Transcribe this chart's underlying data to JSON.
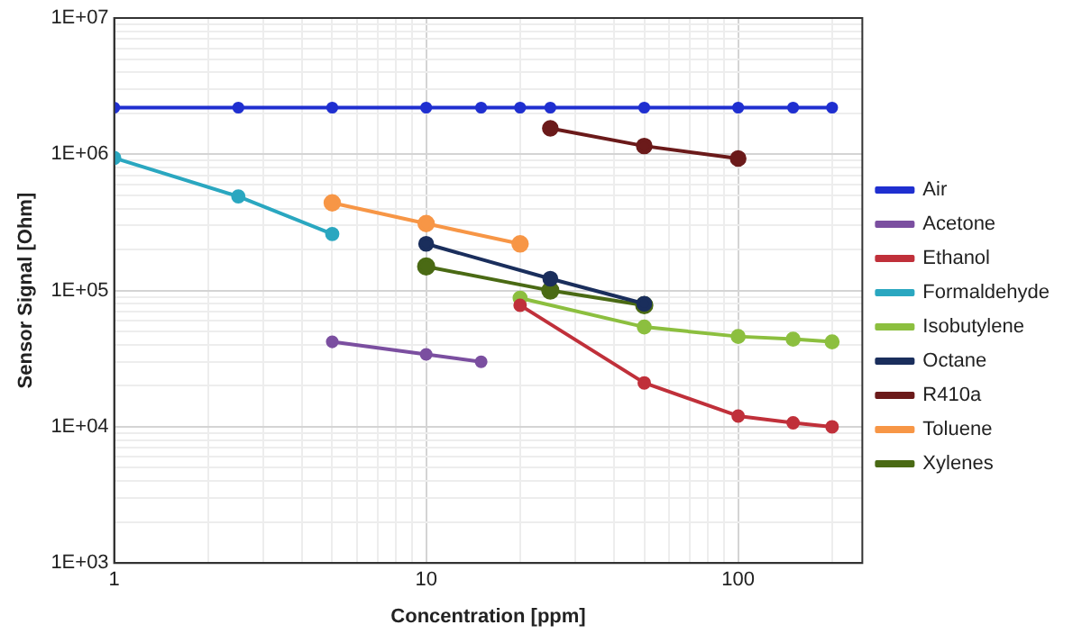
{
  "chart_data": {
    "type": "line",
    "xlabel": "Concentration [ppm]",
    "ylabel": "Sensor Signal [Ohm]",
    "log": "xy",
    "grid": true,
    "legend": "right",
    "marker": "circle",
    "line_style": "solid",
    "xlim": [
      1,
      250
    ],
    "xticks": [
      1,
      10,
      100
    ],
    "ylim": [
      1000,
      10000000
    ],
    "yticks": [
      {
        "value": 1000,
        "label": "1E+03"
      },
      {
        "value": 10000,
        "label": "1E+04"
      },
      {
        "value": 100000,
        "label": "1E+05"
      },
      {
        "value": 1000000,
        "label": "1E+06"
      },
      {
        "value": 10000000,
        "label": "1E+07"
      }
    ],
    "series": [
      {
        "name": "Air",
        "color": "#1f2fd0",
        "x": [
          1,
          2.5,
          5,
          10,
          15,
          20,
          25,
          50,
          100,
          150,
          200
        ],
        "values": [
          2200000,
          2200000,
          2200000,
          2200000,
          2200000,
          2200000,
          2200000,
          2200000,
          2200000,
          2200000,
          2200000
        ]
      },
      {
        "name": "Acetone",
        "color": "#7b4fa0",
        "x": [
          5,
          10,
          15
        ],
        "values": [
          42000,
          34000,
          30000
        ]
      },
      {
        "name": "Ethanol",
        "color": "#c0303a",
        "x": [
          20,
          50,
          100,
          150,
          200
        ],
        "values": [
          78000,
          21000,
          12000,
          10700,
          10000
        ]
      },
      {
        "name": "Formaldehyde",
        "color": "#2aa7c0",
        "x": [
          1,
          2.5,
          5
        ],
        "values": [
          940000,
          490000,
          260000
        ]
      },
      {
        "name": "Isobutylene",
        "color": "#8cbf3f",
        "x": [
          20,
          50,
          100,
          150,
          200
        ],
        "values": [
          88000,
          54000,
          46000,
          44000,
          42000
        ]
      },
      {
        "name": "Octane",
        "color": "#1a2e5c",
        "x": [
          10,
          25,
          50
        ],
        "values": [
          220000,
          122000,
          80000
        ]
      },
      {
        "name": "R410a",
        "color": "#6b1a1a",
        "x": [
          25,
          50,
          100
        ],
        "values": [
          1550000,
          1150000,
          930000
        ]
      },
      {
        "name": "Toluene",
        "color": "#f79646",
        "x": [
          5,
          10,
          20
        ],
        "values": [
          440000,
          310000,
          220000
        ]
      },
      {
        "name": "Xylenes",
        "color": "#4a6a14",
        "x": [
          10,
          25,
          50
        ],
        "values": [
          150000,
          100000,
          78000
        ]
      }
    ]
  }
}
